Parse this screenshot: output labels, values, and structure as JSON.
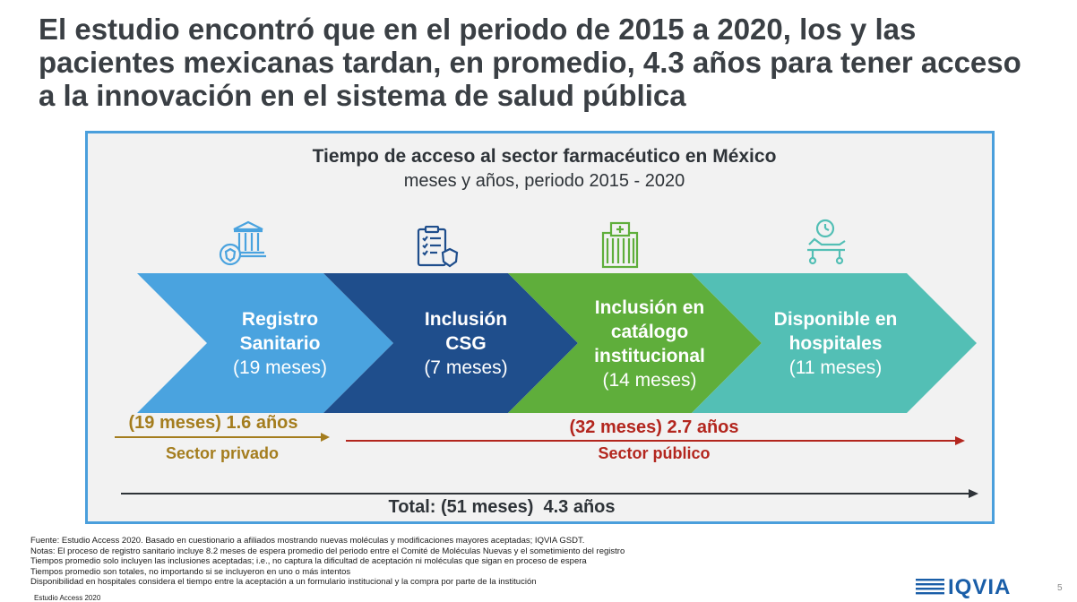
{
  "slide": {
    "title": "El estudio encontró que en el periodo de 2015 a 2020, los y las pacientes mexicanas tardan, en promedio, 4.3 años para tener acceso a la innovación en el sistema de salud pública",
    "page_number": "5"
  },
  "chart": {
    "title": "Tiempo de acceso al sector farmacéutico en México",
    "subtitle": "meses y años, periodo 2015 - 2020"
  },
  "stages": [
    {
      "label": "Registro Sanitario",
      "duration": "(19 meses)",
      "color": "#4aa3df",
      "icon": "government-building-icon"
    },
    {
      "label": "Inclusión CSG",
      "duration": "(7 meses)",
      "color": "#1f4e8c",
      "icon": "clipboard-checklist-icon"
    },
    {
      "label": "Inclusión en catálogo institucional",
      "duration": "(14 meses)",
      "color": "#5fae3b",
      "icon": "hospital-building-icon"
    },
    {
      "label": "Disponible en hospitales",
      "duration": "(11 meses)",
      "color": "#53bfb5",
      "icon": "hospital-bed-clock-icon"
    }
  ],
  "timeline": {
    "private": {
      "value": "(19 meses) 1.6 años",
      "label": "Sector privado",
      "color": "#a47d1e"
    },
    "public": {
      "value": "(32 meses) 2.7 años",
      "label": "Sector público",
      "color": "#b3261e"
    },
    "total": {
      "value": "Total: (51 meses)  4.3 años",
      "color": "#2e3338"
    }
  },
  "footnotes": [
    "Fuente: Estudio Access 2020. Basado en cuestionario a afiliados mostrando nuevas moléculas y modificaciones mayores aceptadas; IQVIA GSDT.",
    "Notas: El proceso de registro sanitario incluye 8.2 meses de espera promedio del periodo entre el Comité de Moléculas Nuevas y el sometimiento del registro",
    "Tiempos promedio solo incluyen las inclusiones aceptadas; i.e., no captura la dificultad de aceptación ni moléculas que sigan en proceso de espera",
    "Tiempos promedio son totales, no importando si se incluyeron en uno o más intentos",
    "Disponibilidad en hospitales considera el tiempo entre la aceptación a un formulario institucional y la compra por parte de la institución"
  ],
  "source_small": "Estudio Access 2020",
  "logo": {
    "text": "IQVIA",
    "color": "#1a5ea8"
  }
}
